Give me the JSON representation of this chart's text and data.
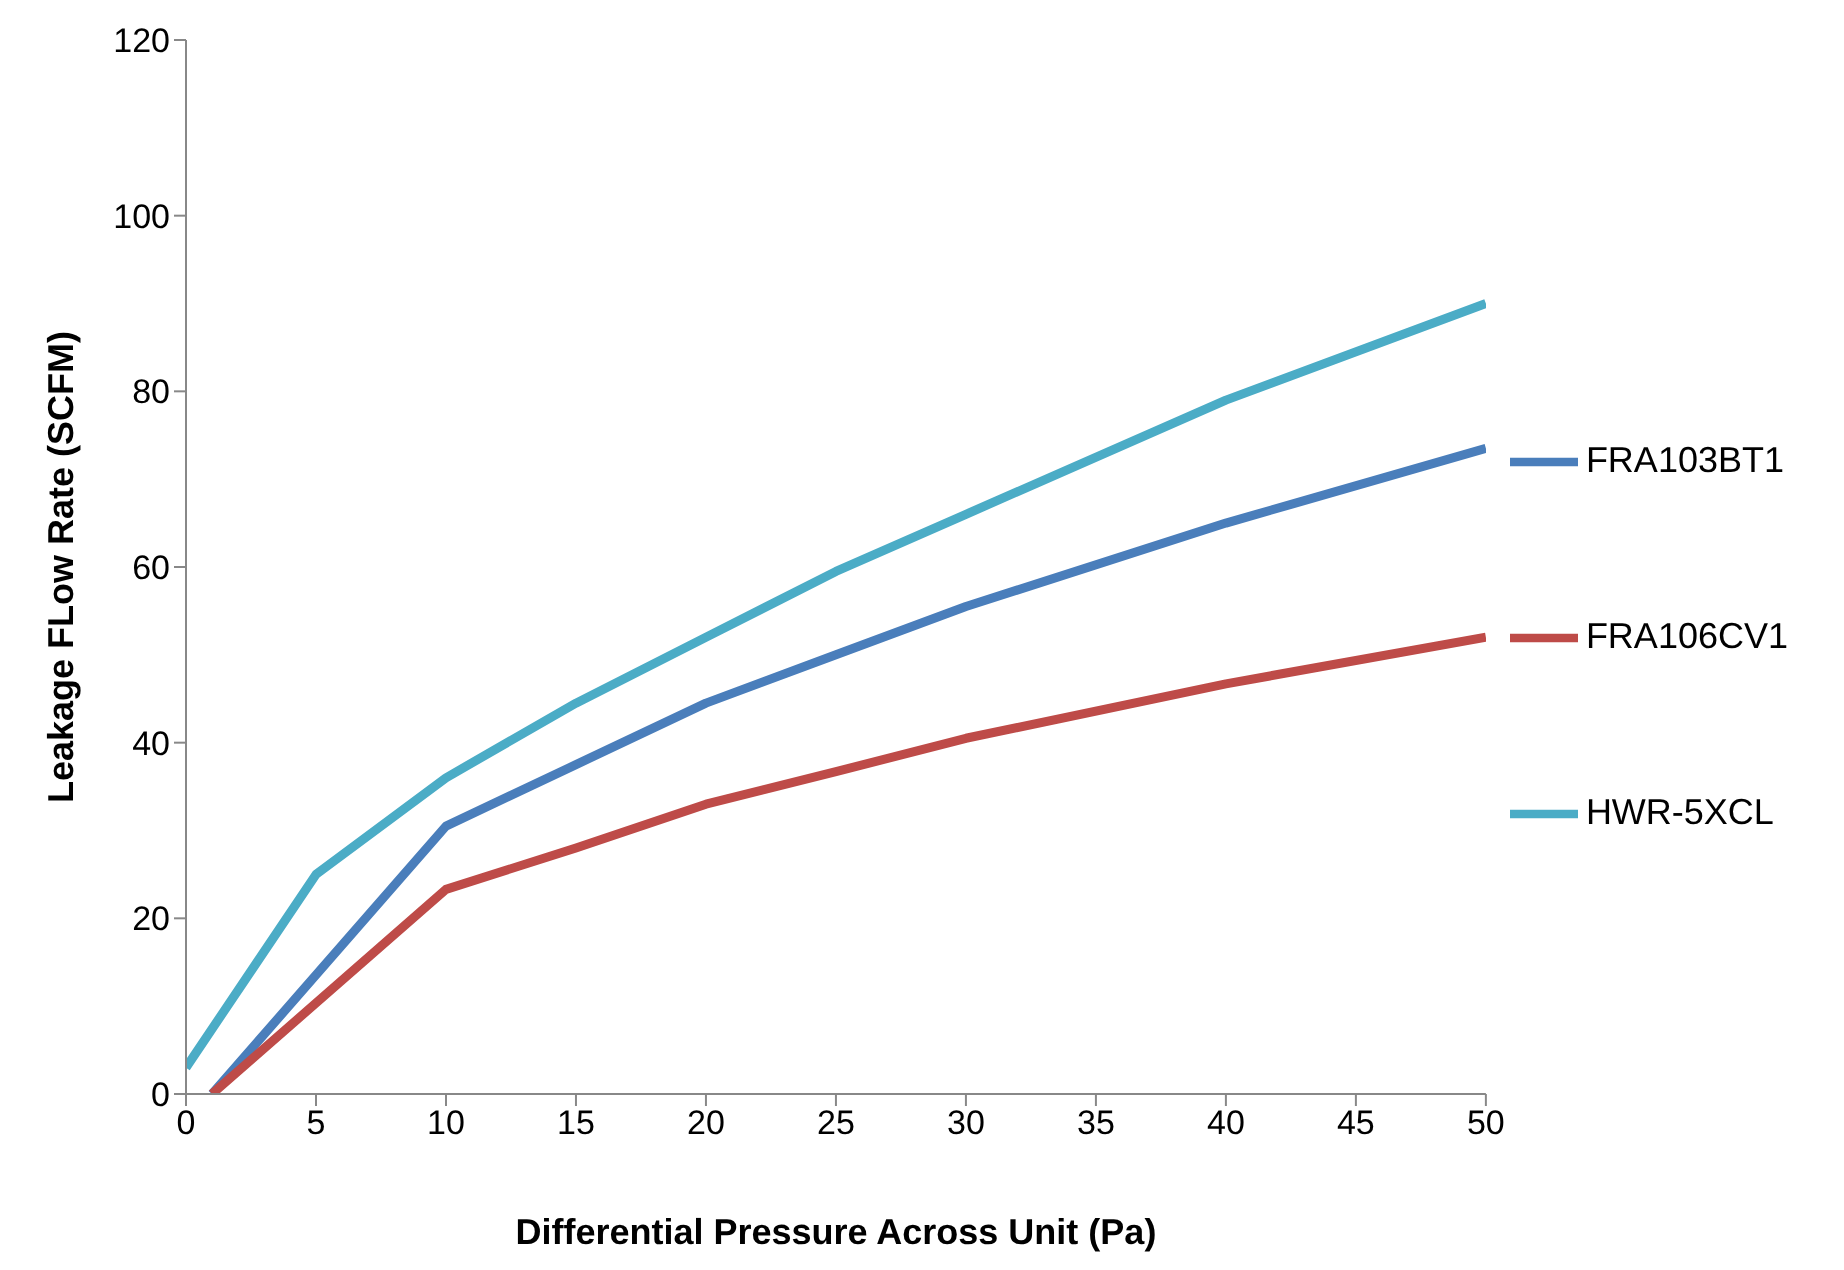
{
  "chart_data": {
    "type": "line",
    "xlabel": "Differential Pressure Across Unit (Pa)",
    "ylabel": "Leakage FLow Rate (SCFM)",
    "xlim": [
      0,
      50
    ],
    "xticks": [
      0,
      5,
      10,
      15,
      20,
      25,
      30,
      35,
      40,
      45,
      50
    ],
    "ylim": [
      0,
      120
    ],
    "yticks": [
      0,
      20,
      40,
      60,
      80,
      100,
      120
    ],
    "grid": false,
    "legend": "right",
    "marker": "none",
    "line_style": "solid",
    "series": [
      {
        "name": "FRA103BT1",
        "color": "#4a7ebb",
        "x": [
          1,
          10,
          15,
          20,
          25,
          30,
          40,
          50
        ],
        "values": [
          0,
          30.5,
          37.5,
          44.5,
          50,
          55.5,
          65,
          73.5
        ]
      },
      {
        "name": "FRA106CV1",
        "color": "#be4b48",
        "x": [
          1,
          10,
          15,
          20,
          25,
          30,
          40,
          50
        ],
        "values": [
          0,
          23.3,
          28,
          33,
          36.7,
          40.5,
          46.7,
          52
        ]
      },
      {
        "name": "HWR-5XCL",
        "color": "#4bacc6",
        "x": [
          0,
          5,
          10,
          15,
          20,
          25,
          30,
          40,
          50
        ],
        "values": [
          3,
          25,
          36,
          44.5,
          52,
          59.5,
          66,
          79,
          90
        ]
      }
    ]
  }
}
